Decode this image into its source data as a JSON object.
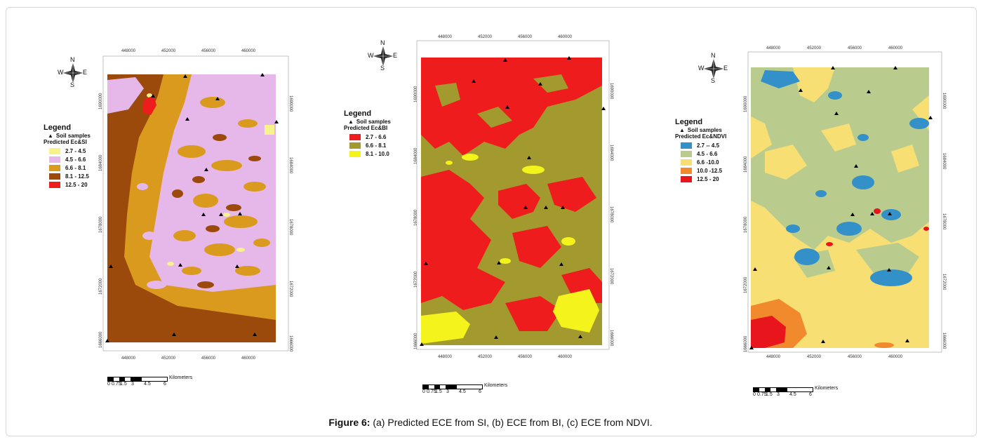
{
  "figure_caption": {
    "label": "Figure 6:",
    "text": " (a) Predicted ECE from SI, (b) ECE from BI, (c) ECE from NDVI."
  },
  "compass": {
    "n": "N",
    "s": "S",
    "w": "W",
    "e": "E"
  },
  "scale": {
    "ticks": [
      "0",
      "0.75",
      "1.5",
      "3",
      "4.5",
      "6"
    ],
    "unit": "Kilometers"
  },
  "maps": [
    {
      "id": "si",
      "legend": {
        "title": "Legend",
        "samples_label": "Soil samples",
        "subtitle": "Predicted Ec&SI",
        "classes": [
          {
            "label": "2.7  - 4.5",
            "color": "#f7f28c"
          },
          {
            "label": "4.5 - 6.6",
            "color": "#e6b7e9"
          },
          {
            "label": "6.6 - 8.1",
            "color": "#d99a1e"
          },
          {
            "label": "8.1 - 12.5",
            "color": "#9b4a0c"
          },
          {
            "label": "12.5 - 20",
            "color": "#ee1c1c"
          }
        ]
      },
      "x_ticks": [
        "448000",
        "452000",
        "456000",
        "460000"
      ],
      "y_ticks": [
        "1690000",
        "1684000",
        "1678000",
        "1672000",
        "1666000"
      ]
    },
    {
      "id": "bi",
      "legend": {
        "title": "Legend",
        "samples_label": "Soil samples",
        "subtitle": "Predicted Ec&BI",
        "classes": [
          {
            "label": "2.7 - 6.6",
            "color": "#ee1c1c"
          },
          {
            "label": "6.6 - 8.1",
            "color": "#a39a2f"
          },
          {
            "label": "8.1 - 10.0",
            "color": "#f4f41c"
          }
        ]
      },
      "x_ticks": [
        "448000",
        "452000",
        "456000",
        "460000"
      ],
      "y_ticks": [
        "1690000",
        "1684000",
        "1678000",
        "1672000",
        "1666000"
      ]
    },
    {
      "id": "ndvi",
      "legend": {
        "title": "Legend",
        "samples_label": "Soil samples",
        "subtitle": "Predicted Ec&NDVI",
        "classes": [
          {
            "label": "2.7 -- 4.5",
            "color": "#3390c9"
          },
          {
            "label": "4.5 - 6.6",
            "color": "#b9cc8e"
          },
          {
            "label": "6.6 -10.0",
            "color": "#f7df74"
          },
          {
            "label": "10.0 -12.5",
            "color": "#f08a2c"
          },
          {
            "label": "12.5 - 20",
            "color": "#e8161c"
          }
        ]
      },
      "x_ticks": [
        "448000",
        "452000",
        "456000",
        "460000"
      ],
      "y_ticks": [
        "1690000",
        "1684000",
        "1678000",
        "1672000",
        "1666000"
      ]
    }
  ]
}
